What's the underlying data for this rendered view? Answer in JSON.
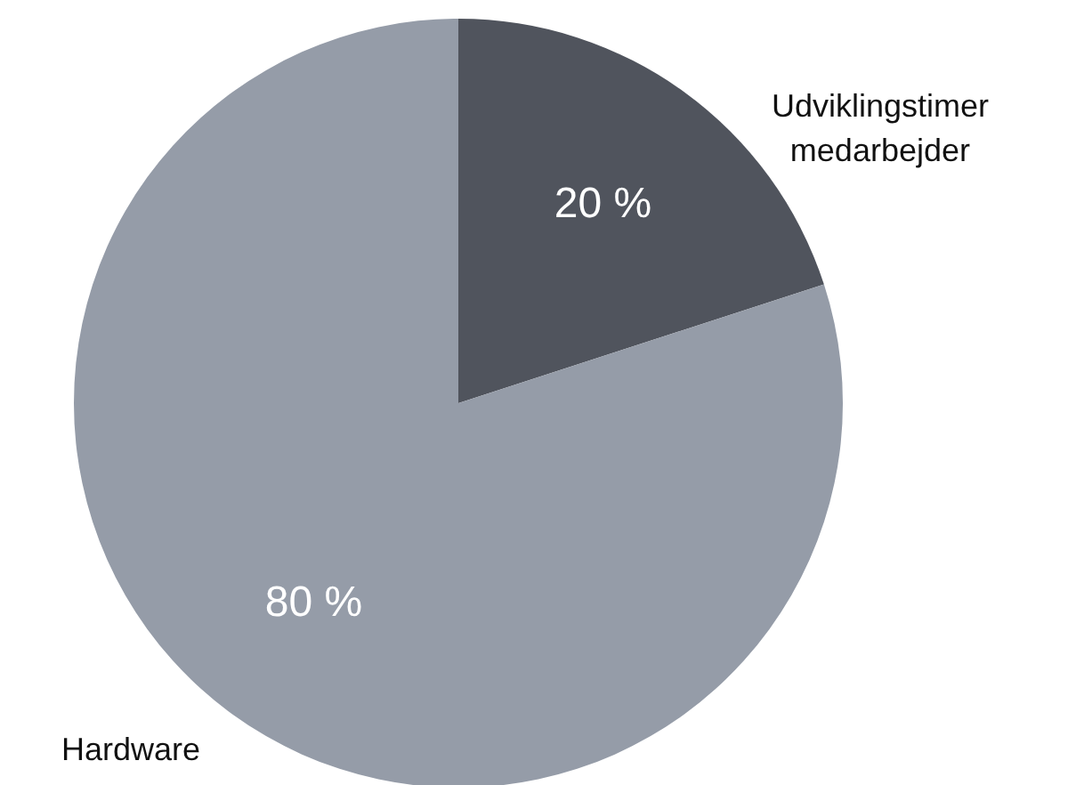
{
  "chart_data": {
    "type": "pie",
    "categories": [
      "Udviklingstimer medarbejder",
      "Hardware"
    ],
    "values": [
      20,
      80
    ],
    "colors": [
      "#50545d",
      "#959ca8"
    ],
    "value_labels": [
      "20 %",
      "80 %"
    ],
    "legend": false
  }
}
